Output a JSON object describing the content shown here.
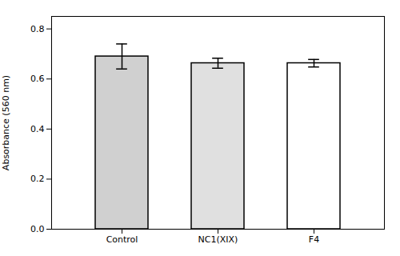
{
  "chart_data": {
    "type": "bar",
    "categories": [
      "Control",
      "NC1(XIX)",
      "F4"
    ],
    "values": [
      0.69,
      0.663,
      0.663
    ],
    "errors": [
      0.05,
      0.02,
      0.015
    ],
    "ylabel": "Absorbance (560 nm)",
    "ylim": [
      0.0,
      0.85
    ],
    "yticks": [
      {
        "value": 0.0,
        "label": "0.0"
      },
      0.2,
      0.4,
      0.6,
      0.8
    ],
    "colors": [
      "#d0d0d0",
      "#e0e0e0",
      "#ffffff"
    ],
    "grid": false
  }
}
